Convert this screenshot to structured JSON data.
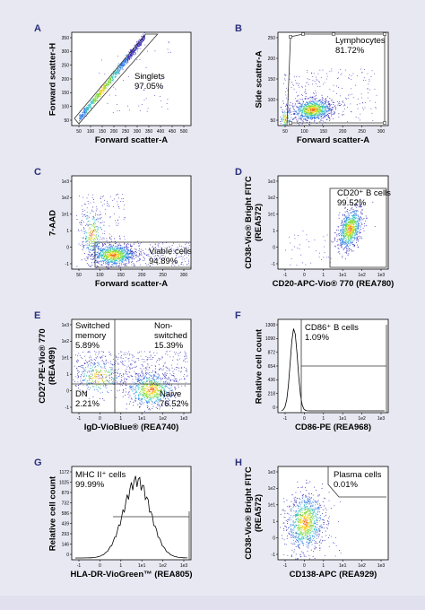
{
  "chart_data": [
    {
      "panel": "A",
      "type": "scatter",
      "xlabel": "Forward scatter-A",
      "ylabel": "Forward scatter-H",
      "xticks": [
        "50",
        "100",
        "150",
        "200",
        "250",
        "300",
        "350",
        "400",
        "450",
        "500"
      ],
      "yticks": [
        "50",
        "100",
        "150",
        "200",
        "250",
        "300",
        "350"
      ],
      "xlim": [
        0,
        540
      ],
      "ylim": [
        0,
        380
      ],
      "gate": {
        "name": "Singlets",
        "percent": "97.05%"
      }
    },
    {
      "panel": "B",
      "type": "scatter",
      "xlabel": "Forward scatter-A",
      "ylabel": "Side scatter-A",
      "xticks": [
        "50",
        "100",
        "150",
        "200",
        "250",
        "300"
      ],
      "yticks": [
        "50",
        "100",
        "150",
        "200",
        "250"
      ],
      "xlim": [
        0,
        330
      ],
      "ylim": [
        0,
        270
      ],
      "gate": {
        "name": "Lymphocytes",
        "percent": "81.72%"
      }
    },
    {
      "panel": "C",
      "type": "scatter",
      "xlabel": "Forward scatter-A",
      "ylabel": "7-AAD",
      "xticks": [
        "50",
        "100",
        "150",
        "200",
        "250",
        "300"
      ],
      "yticks": [
        "-1",
        "0",
        "1",
        "1e1",
        "1e2",
        "1e3"
      ],
      "gate": {
        "name": "Viable cells",
        "percent": "94.89%"
      }
    },
    {
      "panel": "D",
      "type": "scatter",
      "xlabel": "CD20-APC-Vio® 770 (REA780)",
      "ylabel_lines": [
        "CD38-Vio® Bright FITC",
        "(REA572)"
      ],
      "xticks": [
        "-1",
        "0",
        "1",
        "1e1",
        "1e2",
        "1e3"
      ],
      "yticks": [
        "-1",
        "0",
        "1",
        "1e1",
        "1e2",
        "1e3"
      ],
      "gate": {
        "name": "CD20⁺ B cells",
        "percent": "99.52%"
      }
    },
    {
      "panel": "E",
      "type": "scatter",
      "xlabel": "IgD-VioBlue® (REA740)",
      "ylabel_lines": [
        "CD27-PE-Vio® 770",
        "(REA499)"
      ],
      "xticks": [
        "-1",
        "0",
        "1",
        "1e1",
        "1e2",
        "1e3"
      ],
      "yticks": [
        "-1",
        "0",
        "1",
        "1e1",
        "1e2",
        "1e3"
      ],
      "quadrants": [
        {
          "name_lines": [
            "Switched",
            "memory"
          ],
          "percent": "5.89%"
        },
        {
          "name_lines": [
            "Non-",
            "switched"
          ],
          "percent": "15.39%"
        },
        {
          "name_lines": [
            "DN"
          ],
          "percent": "2.21%"
        },
        {
          "name_lines": [
            "Naive"
          ],
          "percent": "76.52%"
        }
      ]
    },
    {
      "panel": "F",
      "type": "histogram",
      "xlabel": "CD86-PE (REA968)",
      "ylabel": "Relative cell count",
      "xticks": [
        "-1",
        "0",
        "1",
        "1e1",
        "1e2",
        "1e3"
      ],
      "yticks": [
        "0",
        "218",
        "436",
        "654",
        "872",
        "1090",
        "1308"
      ],
      "ylim": [
        0,
        1308
      ],
      "gate": {
        "name": "CD86⁺ B cells",
        "percent": "1.09%"
      }
    },
    {
      "panel": "G",
      "type": "histogram",
      "xlabel": "HLA-DR-VioGreen™ (REA805)",
      "ylabel": "Relative cell count",
      "xticks": [
        "-1",
        "0",
        "1",
        "1e1",
        "1e2",
        "1e3"
      ],
      "yticks": [
        "0",
        "146",
        "293",
        "439",
        "586",
        "732",
        "879",
        "1025",
        "1172"
      ],
      "ylim": [
        0,
        1172
      ],
      "gate": {
        "name": "MHC II⁺ cells",
        "percent": "99.99%"
      }
    },
    {
      "panel": "H",
      "type": "scatter",
      "xlabel": "CD138-APC (REA929)",
      "ylabel_lines": [
        "CD38-Vio® Bright FITC",
        "(REA572)"
      ],
      "xticks": [
        "-1",
        "0",
        "1",
        "1e1",
        "1e2",
        "1e3"
      ],
      "yticks": [
        "-1",
        "0",
        "1",
        "1e1",
        "1e2",
        "1e3"
      ],
      "gate": {
        "name": "Plasma cells",
        "percent": "0.01%"
      }
    }
  ]
}
